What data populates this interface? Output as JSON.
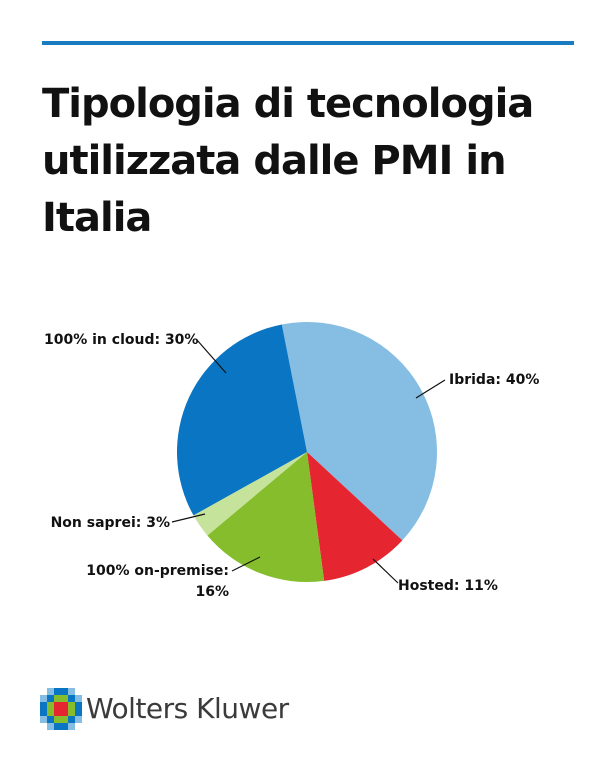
{
  "chart_data": {
    "type": "pie",
    "title": "Tipologia di tecnologia utilizzata dalle PMI in Italia",
    "slices": [
      {
        "label": "Ibrida: 40%",
        "value": 40,
        "color": "#86bde3"
      },
      {
        "label": "Hosted: 11%",
        "value": 11,
        "color": "#e52631"
      },
      {
        "label": "100% on-premise: 16%",
        "value": 16,
        "color": "#85bd2c"
      },
      {
        "label": "Non saprei: 3%",
        "value": 3,
        "color": "#c5e39a"
      },
      {
        "label": "100% in cloud: 30%",
        "value": 30,
        "color": "#0a75c2"
      }
    ]
  },
  "labels": {
    "ibrida": "Ibrida: 40%",
    "hosted": "Hosted: 11%",
    "on_premise_1": "100% on-premise:",
    "on_premise_2": "16%",
    "non_saprei": "Non saprei: 3%",
    "cloud": "100% in cloud: 30%"
  },
  "brand": {
    "name": "Wolters Kluwer",
    "rule_color": "#1a7bc0"
  }
}
